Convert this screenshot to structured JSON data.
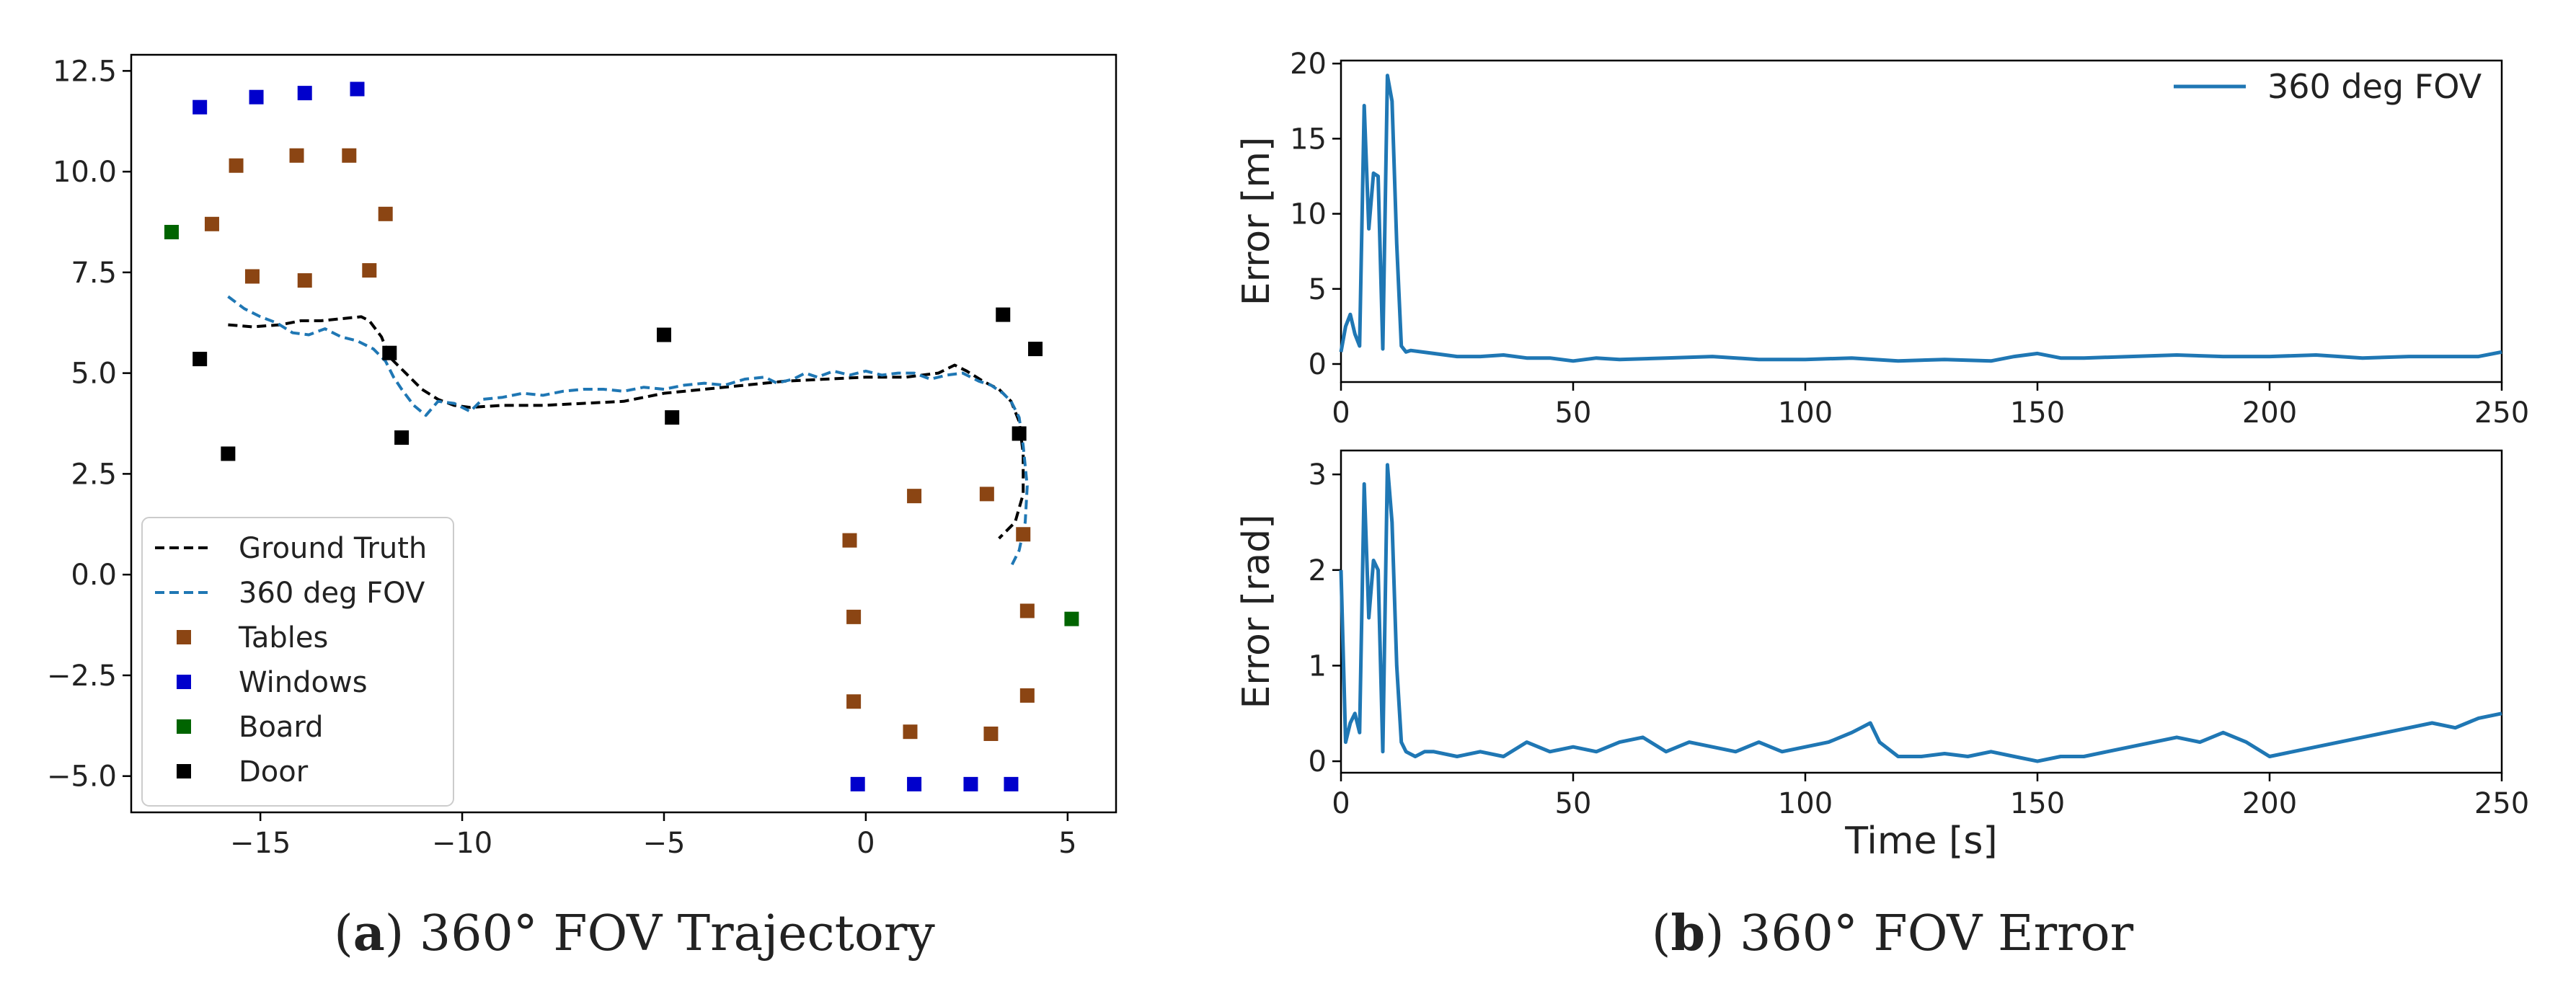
{
  "captions": {
    "a": {
      "letter": "a",
      "text": " 360° FOV Trajectory"
    },
    "b": {
      "letter": "b",
      "text": " 360° FOV Error"
    }
  },
  "chart_data": [
    {
      "id": "trajectory",
      "type": "scatter",
      "title": "",
      "xlabel": "",
      "ylabel": "",
      "xlim": [
        -18.2,
        6.2
      ],
      "ylim": [
        -5.9,
        12.9
      ],
      "xticks": [
        -15,
        -10,
        -5,
        0,
        5
      ],
      "xtick_labels": [
        "−15",
        "−10",
        "−5",
        "0",
        "5"
      ],
      "yticks": [
        12.5,
        10.0,
        7.5,
        5.0,
        2.5,
        0.0,
        -2.5,
        -5.0
      ],
      "ytick_labels": [
        "12.5",
        "10.0",
        "7.5",
        "5.0",
        "2.5",
        "0.0",
        "−2.5",
        "−5.0"
      ],
      "grid": false,
      "legend_position": "lower-left",
      "colors": {
        "ground_truth": "#000000",
        "fov360": "#1f77b4",
        "tables": "#8b4513",
        "windows": "#0000cc",
        "board": "#006400",
        "door": "#000000"
      },
      "series": [
        {
          "name": "Ground Truth",
          "style": "dashed-line",
          "points": [
            [
              -15.8,
              6.2
            ],
            [
              -15.2,
              6.15
            ],
            [
              -14.5,
              6.2
            ],
            [
              -14.0,
              6.3
            ],
            [
              -13.5,
              6.3
            ],
            [
              -13.0,
              6.35
            ],
            [
              -12.5,
              6.4
            ],
            [
              -12.3,
              6.3
            ],
            [
              -12.0,
              5.9
            ],
            [
              -11.8,
              5.4
            ],
            [
              -11.4,
              5.0
            ],
            [
              -11.0,
              4.6
            ],
            [
              -10.6,
              4.35
            ],
            [
              -10.2,
              4.2
            ],
            [
              -9.8,
              4.15
            ],
            [
              -9.0,
              4.2
            ],
            [
              -8.0,
              4.2
            ],
            [
              -7.0,
              4.25
            ],
            [
              -6.0,
              4.3
            ],
            [
              -5.0,
              4.5
            ],
            [
              -4.0,
              4.6
            ],
            [
              -3.0,
              4.7
            ],
            [
              -2.0,
              4.8
            ],
            [
              -1.0,
              4.85
            ],
            [
              0.0,
              4.9
            ],
            [
              1.0,
              4.9
            ],
            [
              1.8,
              5.0
            ],
            [
              2.2,
              5.2
            ],
            [
              2.5,
              5.05
            ],
            [
              2.9,
              4.8
            ],
            [
              3.3,
              4.6
            ],
            [
              3.6,
              4.3
            ],
            [
              3.8,
              3.8
            ],
            [
              3.9,
              3.0
            ],
            [
              3.9,
              2.0
            ],
            [
              3.7,
              1.3
            ],
            [
              3.3,
              0.9
            ]
          ]
        },
        {
          "name": "360 deg FOV",
          "style": "dashed-line",
          "points": [
            [
              -15.8,
              6.9
            ],
            [
              -15.4,
              6.6
            ],
            [
              -15.0,
              6.4
            ],
            [
              -14.6,
              6.25
            ],
            [
              -14.2,
              6.0
            ],
            [
              -13.8,
              5.95
            ],
            [
              -13.4,
              6.1
            ],
            [
              -13.0,
              5.9
            ],
            [
              -12.6,
              5.8
            ],
            [
              -12.2,
              5.6
            ],
            [
              -11.9,
              5.3
            ],
            [
              -11.7,
              4.9
            ],
            [
              -11.5,
              4.6
            ],
            [
              -11.2,
              4.2
            ],
            [
              -10.9,
              3.95
            ],
            [
              -10.6,
              4.3
            ],
            [
              -10.2,
              4.25
            ],
            [
              -9.8,
              4.05
            ],
            [
              -9.5,
              4.35
            ],
            [
              -9.0,
              4.4
            ],
            [
              -8.5,
              4.5
            ],
            [
              -8.0,
              4.45
            ],
            [
              -7.5,
              4.55
            ],
            [
              -7.0,
              4.6
            ],
            [
              -6.5,
              4.6
            ],
            [
              -6.0,
              4.55
            ],
            [
              -5.5,
              4.65
            ],
            [
              -5.0,
              4.6
            ],
            [
              -4.5,
              4.7
            ],
            [
              -4.0,
              4.75
            ],
            [
              -3.5,
              4.7
            ],
            [
              -3.0,
              4.85
            ],
            [
              -2.5,
              4.9
            ],
            [
              -2.2,
              4.75
            ],
            [
              -1.8,
              4.85
            ],
            [
              -1.5,
              5.0
            ],
            [
              -1.2,
              4.9
            ],
            [
              -0.8,
              5.05
            ],
            [
              -0.4,
              4.95
            ],
            [
              0.0,
              5.05
            ],
            [
              0.4,
              4.95
            ],
            [
              0.8,
              5.0
            ],
            [
              1.2,
              5.0
            ],
            [
              1.6,
              4.85
            ],
            [
              2.0,
              4.95
            ],
            [
              2.4,
              5.0
            ],
            [
              2.8,
              4.8
            ],
            [
              3.1,
              4.7
            ],
            [
              3.4,
              4.5
            ],
            [
              3.6,
              4.3
            ],
            [
              3.8,
              3.9
            ],
            [
              3.9,
              3.2
            ],
            [
              4.0,
              2.2
            ],
            [
              3.95,
              1.3
            ],
            [
              3.8,
              0.6
            ],
            [
              3.6,
              0.2
            ]
          ]
        },
        {
          "name": "Tables",
          "style": "marker",
          "points": [
            [
              -16.2,
              8.7
            ],
            [
              -15.6,
              10.15
            ],
            [
              -15.2,
              7.4
            ],
            [
              -14.1,
              10.4
            ],
            [
              -13.9,
              7.3
            ],
            [
              -12.8,
              10.4
            ],
            [
              -12.3,
              7.55
            ],
            [
              -11.9,
              8.95
            ],
            [
              -0.4,
              0.85
            ],
            [
              -0.3,
              -1.05
            ],
            [
              -0.3,
              -3.15
            ],
            [
              1.2,
              1.95
            ],
            [
              1.1,
              -3.9
            ],
            [
              3.0,
              2.0
            ],
            [
              3.1,
              -3.95
            ],
            [
              3.9,
              1.0
            ],
            [
              4.0,
              -0.9
            ],
            [
              4.0,
              -3.0
            ]
          ]
        },
        {
          "name": "Windows",
          "style": "marker",
          "points": [
            [
              -16.5,
              11.6
            ],
            [
              -15.1,
              11.85
            ],
            [
              -13.9,
              11.95
            ],
            [
              -12.6,
              12.05
            ],
            [
              -0.2,
              -5.2
            ],
            [
              1.2,
              -5.2
            ],
            [
              2.6,
              -5.2
            ],
            [
              3.6,
              -5.2
            ]
          ]
        },
        {
          "name": "Board",
          "style": "marker",
          "points": [
            [
              -17.2,
              8.5
            ],
            [
              5.1,
              -1.1
            ]
          ]
        },
        {
          "name": "Door",
          "style": "marker",
          "points": [
            [
              -16.5,
              5.35
            ],
            [
              -15.8,
              3.0
            ],
            [
              -11.8,
              5.5
            ],
            [
              -11.5,
              3.4
            ],
            [
              -5.0,
              5.95
            ],
            [
              -4.8,
              3.9
            ],
            [
              3.4,
              6.45
            ],
            [
              3.8,
              3.5
            ],
            [
              4.2,
              5.6
            ]
          ]
        }
      ]
    },
    {
      "id": "position-error",
      "type": "line",
      "title": "",
      "xlabel": "",
      "ylabel": "Error [m]",
      "xlim": [
        0,
        250
      ],
      "ylim": [
        -1.2,
        20.2
      ],
      "xticks": [
        0,
        50,
        100,
        150,
        200,
        250
      ],
      "xtick_labels": [
        "0",
        "50",
        "100",
        "150",
        "200",
        "250"
      ],
      "yticks": [
        0,
        5,
        10,
        15,
        20
      ],
      "ytick_labels": [
        "0",
        "5",
        "10",
        "15",
        "20"
      ],
      "grid": false,
      "legend_position": "top-right",
      "series": [
        {
          "name": "360 deg FOV",
          "color": "#1f77b4",
          "x": [
            0,
            1,
            2,
            3,
            4,
            5,
            6,
            7,
            8,
            9,
            10,
            11,
            12,
            13,
            14,
            15,
            20,
            25,
            30,
            35,
            40,
            45,
            50,
            55,
            60,
            70,
            80,
            90,
            100,
            110,
            120,
            130,
            140,
            145,
            150,
            155,
            160,
            170,
            180,
            190,
            200,
            210,
            220,
            230,
            240,
            245,
            250
          ],
          "y": [
            0.8,
            2.5,
            3.3,
            2.0,
            1.2,
            17.2,
            9.0,
            12.7,
            12.5,
            1.0,
            19.2,
            17.5,
            8.0,
            1.2,
            0.8,
            0.9,
            0.7,
            0.5,
            0.5,
            0.6,
            0.4,
            0.4,
            0.2,
            0.4,
            0.3,
            0.4,
            0.5,
            0.3,
            0.3,
            0.4,
            0.2,
            0.3,
            0.2,
            0.5,
            0.7,
            0.4,
            0.4,
            0.5,
            0.6,
            0.5,
            0.5,
            0.6,
            0.4,
            0.5,
            0.5,
            0.5,
            0.8
          ]
        }
      ]
    },
    {
      "id": "orientation-error",
      "type": "line",
      "title": "",
      "xlabel": "Time [s]",
      "ylabel": "Error [rad]",
      "xlim": [
        0,
        250
      ],
      "ylim": [
        -0.12,
        3.25
      ],
      "xticks": [
        0,
        50,
        100,
        150,
        200,
        250
      ],
      "xtick_labels": [
        "0",
        "50",
        "100",
        "150",
        "200",
        "250"
      ],
      "yticks": [
        0,
        1,
        2,
        3
      ],
      "ytick_labels": [
        "0",
        "1",
        "2",
        "3"
      ],
      "grid": false,
      "series": [
        {
          "name": "360 deg FOV",
          "color": "#1f77b4",
          "x": [
            0,
            1,
            2,
            3,
            4,
            5,
            6,
            7,
            8,
            9,
            10,
            11,
            12,
            13,
            14,
            16,
            18,
            20,
            25,
            30,
            35,
            40,
            45,
            50,
            55,
            60,
            65,
            70,
            75,
            80,
            85,
            90,
            95,
            100,
            105,
            110,
            112,
            114,
            116,
            120,
            125,
            130,
            135,
            140,
            145,
            150,
            155,
            160,
            165,
            170,
            175,
            180,
            185,
            190,
            195,
            200,
            205,
            210,
            215,
            220,
            225,
            230,
            235,
            240,
            245,
            250
          ],
          "y": [
            2.0,
            0.2,
            0.4,
            0.5,
            0.3,
            2.9,
            1.5,
            2.1,
            2.0,
            0.1,
            3.1,
            2.5,
            1.0,
            0.2,
            0.1,
            0.05,
            0.1,
            0.1,
            0.05,
            0.1,
            0.05,
            0.2,
            0.1,
            0.15,
            0.1,
            0.2,
            0.25,
            0.1,
            0.2,
            0.15,
            0.1,
            0.2,
            0.1,
            0.15,
            0.2,
            0.3,
            0.35,
            0.4,
            0.2,
            0.05,
            0.05,
            0.08,
            0.05,
            0.1,
            0.05,
            0.0,
            0.05,
            0.05,
            0.1,
            0.15,
            0.2,
            0.25,
            0.2,
            0.3,
            0.2,
            0.05,
            0.1,
            0.15,
            0.2,
            0.25,
            0.3,
            0.35,
            0.4,
            0.35,
            0.45,
            0.5
          ]
        }
      ]
    }
  ]
}
